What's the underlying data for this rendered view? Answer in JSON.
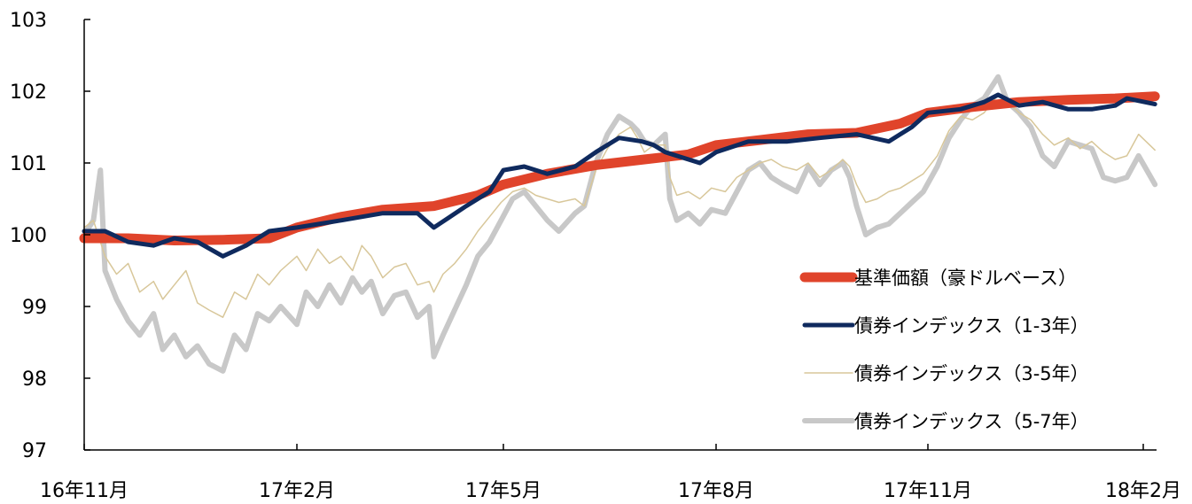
{
  "chart_data": {
    "type": "line",
    "title": "",
    "xlabel": "",
    "ylabel": "",
    "ylim": [
      97,
      103
    ],
    "xlim": [
      "2016-11-01",
      "2018-02-06"
    ],
    "y_ticks": [
      "97",
      "98",
      "99",
      "100",
      "101",
      "102",
      "103"
    ],
    "x_ticks": [
      {
        "label": "16年11月",
        "date": "2016-11-01"
      },
      {
        "label": "17年2月",
        "date": "2017-02-01"
      },
      {
        "label": "17年5月",
        "date": "2017-05-01"
      },
      {
        "label": "17年8月",
        "date": "2017-08-01"
      },
      {
        "label": "17年11月",
        "date": "2017-11-01"
      },
      {
        "label": "18年2月",
        "date": "2018-02-01"
      }
    ],
    "legend_position": "bottom-right",
    "grid": false,
    "series": [
      {
        "name": "基準価額（豪ドルベース）",
        "color": "#e0442b",
        "style": "thick",
        "points": [
          [
            "2016-11-01",
            99.95
          ],
          [
            "2016-11-20",
            99.95
          ],
          [
            "2016-12-10",
            99.92
          ],
          [
            "2016-12-31",
            99.93
          ],
          [
            "2017-01-20",
            99.95
          ],
          [
            "2017-02-01",
            100.1
          ],
          [
            "2017-02-20",
            100.25
          ],
          [
            "2017-03-10",
            100.35
          ],
          [
            "2017-04-01",
            100.4
          ],
          [
            "2017-04-20",
            100.55
          ],
          [
            "2017-05-01",
            100.7
          ],
          [
            "2017-05-20",
            100.85
          ],
          [
            "2017-06-10",
            100.97
          ],
          [
            "2017-07-01",
            101.05
          ],
          [
            "2017-07-20",
            101.12
          ],
          [
            "2017-08-01",
            101.25
          ],
          [
            "2017-08-20",
            101.32
          ],
          [
            "2017-09-10",
            101.4
          ],
          [
            "2017-10-01",
            101.42
          ],
          [
            "2017-10-20",
            101.55
          ],
          [
            "2017-11-01",
            101.7
          ],
          [
            "2017-11-20",
            101.78
          ],
          [
            "2017-12-10",
            101.85
          ],
          [
            "2017-12-31",
            101.88
          ],
          [
            "2018-01-20",
            101.9
          ],
          [
            "2018-02-06",
            101.93
          ]
        ]
      },
      {
        "name": "債券インデックス（1-3年）",
        "color": "#0f2a5e",
        "style": "medium",
        "points": [
          [
            "2016-11-01",
            100.05
          ],
          [
            "2016-11-10",
            100.05
          ],
          [
            "2016-11-20",
            99.9
          ],
          [
            "2016-12-01",
            99.85
          ],
          [
            "2016-12-10",
            99.95
          ],
          [
            "2016-12-20",
            99.9
          ],
          [
            "2016-12-31",
            99.7
          ],
          [
            "2017-01-10",
            99.85
          ],
          [
            "2017-01-20",
            100.05
          ],
          [
            "2017-02-01",
            100.1
          ],
          [
            "2017-02-20",
            100.2
          ],
          [
            "2017-03-10",
            100.3
          ],
          [
            "2017-03-25",
            100.3
          ],
          [
            "2017-04-01",
            100.1
          ],
          [
            "2017-04-15",
            100.4
          ],
          [
            "2017-04-25",
            100.6
          ],
          [
            "2017-05-01",
            100.9
          ],
          [
            "2017-05-10",
            100.95
          ],
          [
            "2017-05-20",
            100.85
          ],
          [
            "2017-06-01",
            100.95
          ],
          [
            "2017-06-10",
            101.15
          ],
          [
            "2017-06-20",
            101.35
          ],
          [
            "2017-06-30",
            101.3
          ],
          [
            "2017-07-05",
            101.25
          ],
          [
            "2017-07-10",
            101.15
          ],
          [
            "2017-07-15",
            101.1
          ],
          [
            "2017-07-25",
            101.0
          ],
          [
            "2017-08-01",
            101.15
          ],
          [
            "2017-08-15",
            101.3
          ],
          [
            "2017-09-01",
            101.3
          ],
          [
            "2017-09-15",
            101.35
          ],
          [
            "2017-10-01",
            101.4
          ],
          [
            "2017-10-15",
            101.3
          ],
          [
            "2017-10-25",
            101.5
          ],
          [
            "2017-11-01",
            101.7
          ],
          [
            "2017-11-15",
            101.75
          ],
          [
            "2017-11-25",
            101.85
          ],
          [
            "2017-12-01",
            101.95
          ],
          [
            "2017-12-10",
            101.8
          ],
          [
            "2017-12-20",
            101.85
          ],
          [
            "2017-12-31",
            101.75
          ],
          [
            "2018-01-10",
            101.75
          ],
          [
            "2018-01-20",
            101.8
          ],
          [
            "2018-01-25",
            101.9
          ],
          [
            "2018-02-06",
            101.82
          ]
        ]
      },
      {
        "name": "債券インデックス（3-5年）",
        "color": "#d8c79a",
        "style": "thin",
        "points": [
          [
            "2016-11-01",
            100.1
          ],
          [
            "2016-11-05",
            100.2
          ],
          [
            "2016-11-10",
            99.7
          ],
          [
            "2016-11-15",
            99.45
          ],
          [
            "2016-11-20",
            99.6
          ],
          [
            "2016-11-25",
            99.2
          ],
          [
            "2016-12-01",
            99.35
          ],
          [
            "2016-12-05",
            99.1
          ],
          [
            "2016-12-10",
            99.3
          ],
          [
            "2016-12-15",
            99.5
          ],
          [
            "2016-12-20",
            99.05
          ],
          [
            "2016-12-25",
            98.95
          ],
          [
            "2016-12-31",
            98.85
          ],
          [
            "2017-01-05",
            99.2
          ],
          [
            "2017-01-10",
            99.1
          ],
          [
            "2017-01-15",
            99.45
          ],
          [
            "2017-01-20",
            99.3
          ],
          [
            "2017-01-25",
            99.5
          ],
          [
            "2017-02-01",
            99.7
          ],
          [
            "2017-02-05",
            99.5
          ],
          [
            "2017-02-10",
            99.8
          ],
          [
            "2017-02-15",
            99.6
          ],
          [
            "2017-02-20",
            99.7
          ],
          [
            "2017-02-25",
            99.5
          ],
          [
            "2017-03-01",
            99.85
          ],
          [
            "2017-03-05",
            99.7
          ],
          [
            "2017-03-10",
            99.4
          ],
          [
            "2017-03-15",
            99.55
          ],
          [
            "2017-03-20",
            99.6
          ],
          [
            "2017-03-25",
            99.3
          ],
          [
            "2017-03-30",
            99.35
          ],
          [
            "2017-04-01",
            99.2
          ],
          [
            "2017-04-05",
            99.45
          ],
          [
            "2017-04-10",
            99.6
          ],
          [
            "2017-04-15",
            99.8
          ],
          [
            "2017-04-20",
            100.05
          ],
          [
            "2017-04-25",
            100.25
          ],
          [
            "2017-04-30",
            100.45
          ],
          [
            "2017-05-05",
            100.6
          ],
          [
            "2017-05-10",
            100.65
          ],
          [
            "2017-05-15",
            100.55
          ],
          [
            "2017-05-20",
            100.5
          ],
          [
            "2017-05-25",
            100.45
          ],
          [
            "2017-06-01",
            100.5
          ],
          [
            "2017-06-05",
            100.4
          ],
          [
            "2017-06-10",
            100.9
          ],
          [
            "2017-06-15",
            101.2
          ],
          [
            "2017-06-20",
            101.4
          ],
          [
            "2017-06-25",
            101.5
          ],
          [
            "2017-06-28",
            101.35
          ],
          [
            "2017-07-01",
            101.15
          ],
          [
            "2017-07-05",
            101.25
          ],
          [
            "2017-07-10",
            101.25
          ],
          [
            "2017-07-12",
            100.8
          ],
          [
            "2017-07-15",
            100.55
          ],
          [
            "2017-07-20",
            100.6
          ],
          [
            "2017-07-25",
            100.5
          ],
          [
            "2017-07-30",
            100.65
          ],
          [
            "2017-08-05",
            100.6
          ],
          [
            "2017-08-10",
            100.8
          ],
          [
            "2017-08-15",
            100.9
          ],
          [
            "2017-08-20",
            101.0
          ],
          [
            "2017-08-25",
            101.05
          ],
          [
            "2017-08-30",
            100.95
          ],
          [
            "2017-09-05",
            100.9
          ],
          [
            "2017-09-10",
            101.0
          ],
          [
            "2017-09-15",
            100.8
          ],
          [
            "2017-09-20",
            100.9
          ],
          [
            "2017-09-25",
            101.05
          ],
          [
            "2017-09-28",
            100.95
          ],
          [
            "2017-10-01",
            100.7
          ],
          [
            "2017-10-05",
            100.45
          ],
          [
            "2017-10-10",
            100.5
          ],
          [
            "2017-10-15",
            100.6
          ],
          [
            "2017-10-20",
            100.65
          ],
          [
            "2017-10-25",
            100.75
          ],
          [
            "2017-10-30",
            100.85
          ],
          [
            "2017-11-05",
            101.1
          ],
          [
            "2017-11-10",
            101.45
          ],
          [
            "2017-11-15",
            101.65
          ],
          [
            "2017-11-20",
            101.6
          ],
          [
            "2017-11-25",
            101.7
          ],
          [
            "2017-12-01",
            101.95
          ],
          [
            "2017-12-05",
            101.85
          ],
          [
            "2017-12-10",
            101.7
          ],
          [
            "2017-12-15",
            101.6
          ],
          [
            "2017-12-20",
            101.4
          ],
          [
            "2017-12-25",
            101.25
          ],
          [
            "2017-12-31",
            101.35
          ],
          [
            "2018-01-05",
            101.2
          ],
          [
            "2018-01-10",
            101.3
          ],
          [
            "2018-01-15",
            101.15
          ],
          [
            "2018-01-20",
            101.05
          ],
          [
            "2018-01-25",
            101.1
          ],
          [
            "2018-01-30",
            101.4
          ],
          [
            "2018-02-06",
            101.18
          ]
        ]
      },
      {
        "name": "債券インデックス（5-7年）",
        "color": "#c8c8c8",
        "style": "medium-thick",
        "points": [
          [
            "2016-11-01",
            100.0
          ],
          [
            "2016-11-05",
            100.2
          ],
          [
            "2016-11-08",
            100.9
          ],
          [
            "2016-11-10",
            99.5
          ],
          [
            "2016-11-15",
            99.1
          ],
          [
            "2016-11-20",
            98.8
          ],
          [
            "2016-11-25",
            98.6
          ],
          [
            "2016-12-01",
            98.9
          ],
          [
            "2016-12-05",
            98.4
          ],
          [
            "2016-12-10",
            98.6
          ],
          [
            "2016-12-15",
            98.3
          ],
          [
            "2016-12-20",
            98.45
          ],
          [
            "2016-12-25",
            98.2
          ],
          [
            "2016-12-31",
            98.1
          ],
          [
            "2017-01-05",
            98.6
          ],
          [
            "2017-01-10",
            98.4
          ],
          [
            "2017-01-15",
            98.9
          ],
          [
            "2017-01-20",
            98.8
          ],
          [
            "2017-01-25",
            99.0
          ],
          [
            "2017-02-01",
            98.75
          ],
          [
            "2017-02-05",
            99.2
          ],
          [
            "2017-02-10",
            99.0
          ],
          [
            "2017-02-15",
            99.3
          ],
          [
            "2017-02-20",
            99.05
          ],
          [
            "2017-02-25",
            99.4
          ],
          [
            "2017-03-01",
            99.2
          ],
          [
            "2017-03-05",
            99.35
          ],
          [
            "2017-03-10",
            98.9
          ],
          [
            "2017-03-15",
            99.15
          ],
          [
            "2017-03-20",
            99.2
          ],
          [
            "2017-03-25",
            98.85
          ],
          [
            "2017-03-30",
            99.0
          ],
          [
            "2017-04-01",
            98.3
          ],
          [
            "2017-04-05",
            98.6
          ],
          [
            "2017-04-10",
            98.95
          ],
          [
            "2017-04-15",
            99.3
          ],
          [
            "2017-04-20",
            99.7
          ],
          [
            "2017-04-25",
            99.9
          ],
          [
            "2017-04-30",
            100.2
          ],
          [
            "2017-05-05",
            100.5
          ],
          [
            "2017-05-10",
            100.6
          ],
          [
            "2017-05-15",
            100.4
          ],
          [
            "2017-05-20",
            100.2
          ],
          [
            "2017-05-25",
            100.05
          ],
          [
            "2017-06-01",
            100.3
          ],
          [
            "2017-06-05",
            100.4
          ],
          [
            "2017-06-10",
            101.0
          ],
          [
            "2017-06-15",
            101.4
          ],
          [
            "2017-06-20",
            101.65
          ],
          [
            "2017-06-25",
            101.55
          ],
          [
            "2017-06-28",
            101.45
          ],
          [
            "2017-07-01",
            101.3
          ],
          [
            "2017-07-05",
            101.25
          ],
          [
            "2017-07-10",
            101.4
          ],
          [
            "2017-07-12",
            100.5
          ],
          [
            "2017-07-15",
            100.2
          ],
          [
            "2017-07-20",
            100.3
          ],
          [
            "2017-07-25",
            100.15
          ],
          [
            "2017-07-30",
            100.35
          ],
          [
            "2017-08-05",
            100.3
          ],
          [
            "2017-08-10",
            100.6
          ],
          [
            "2017-08-15",
            100.9
          ],
          [
            "2017-08-20",
            101.0
          ],
          [
            "2017-08-25",
            100.8
          ],
          [
            "2017-08-30",
            100.7
          ],
          [
            "2017-09-05",
            100.6
          ],
          [
            "2017-09-10",
            100.95
          ],
          [
            "2017-09-15",
            100.7
          ],
          [
            "2017-09-20",
            100.9
          ],
          [
            "2017-09-25",
            101.0
          ],
          [
            "2017-09-28",
            100.8
          ],
          [
            "2017-10-01",
            100.4
          ],
          [
            "2017-10-05",
            100.0
          ],
          [
            "2017-10-10",
            100.1
          ],
          [
            "2017-10-15",
            100.15
          ],
          [
            "2017-10-20",
            100.3
          ],
          [
            "2017-10-25",
            100.45
          ],
          [
            "2017-10-30",
            100.6
          ],
          [
            "2017-11-05",
            100.95
          ],
          [
            "2017-11-10",
            101.35
          ],
          [
            "2017-11-15",
            101.6
          ],
          [
            "2017-11-20",
            101.8
          ],
          [
            "2017-11-25",
            101.9
          ],
          [
            "2017-12-01",
            102.2
          ],
          [
            "2017-12-05",
            101.85
          ],
          [
            "2017-12-10",
            101.7
          ],
          [
            "2017-12-15",
            101.5
          ],
          [
            "2017-12-20",
            101.1
          ],
          [
            "2017-12-25",
            100.95
          ],
          [
            "2017-12-31",
            101.3
          ],
          [
            "2018-01-05",
            101.25
          ],
          [
            "2018-01-10",
            101.2
          ],
          [
            "2018-01-15",
            100.8
          ],
          [
            "2018-01-20",
            100.75
          ],
          [
            "2018-01-25",
            100.8
          ],
          [
            "2018-01-30",
            101.1
          ],
          [
            "2018-02-06",
            100.7
          ]
        ]
      }
    ]
  }
}
